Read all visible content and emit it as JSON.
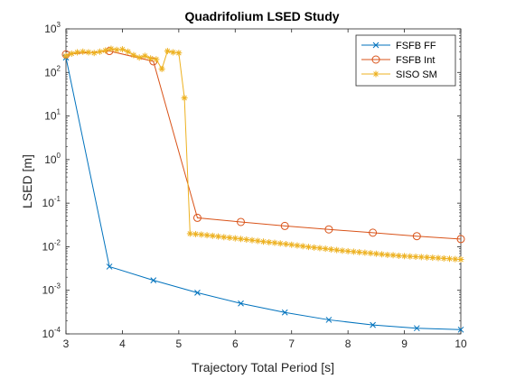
{
  "chart_data": {
    "type": "line",
    "title": "Quadrifolium LSED Study",
    "xlabel": "Trajectory Total Period [s]",
    "ylabel": "LSED [m]",
    "xlim": [
      3,
      10
    ],
    "ylim": [
      0.0001,
      1000
    ],
    "yscale": "log",
    "grid": false,
    "legend_position": "top-right",
    "x_ticks": [
      "3",
      "4",
      "5",
      "6",
      "7",
      "8",
      "9",
      "10"
    ],
    "y_tick_base": "10",
    "y_tick_exponents": [
      "-4",
      "-3",
      "-2",
      "-1",
      "0",
      "1",
      "2",
      "3"
    ],
    "series": [
      {
        "name": "FSFB FF",
        "color": "#0072BD",
        "marker": "x",
        "x": [
          3.0,
          3.77,
          4.55,
          5.33,
          6.1,
          6.88,
          7.66,
          8.44,
          9.22,
          10.0
        ],
        "y": [
          220,
          0.0035,
          0.0017,
          0.00088,
          0.0005,
          0.00031,
          0.00021,
          0.00016,
          0.000135,
          0.000125
        ]
      },
      {
        "name": "FSFB Int",
        "color": "#D95319",
        "marker": "o",
        "x": [
          3.0,
          3.77,
          4.55,
          5.33,
          6.1,
          6.88,
          7.66,
          8.44,
          9.22,
          10.0
        ],
        "y": [
          260,
          310,
          180,
          0.046,
          0.037,
          0.03,
          0.025,
          0.021,
          0.0175,
          0.015
        ]
      },
      {
        "name": "SISO SM",
        "color": "#EDB120",
        "marker": "*",
        "x": [
          3.0,
          3.1,
          3.2,
          3.3,
          3.4,
          3.5,
          3.6,
          3.7,
          3.8,
          3.9,
          4.0,
          4.1,
          4.2,
          4.3,
          4.4,
          4.5,
          4.6,
          4.7,
          4.8,
          4.9,
          5.0,
          5.1,
          5.2,
          5.3,
          5.4,
          5.5,
          5.6,
          5.7,
          5.8,
          5.9,
          6.0,
          6.1,
          6.2,
          6.3,
          6.4,
          6.5,
          6.6,
          6.7,
          6.8,
          6.9,
          7.0,
          7.1,
          7.2,
          7.3,
          7.4,
          7.5,
          7.6,
          7.7,
          7.8,
          7.9,
          8.0,
          8.1,
          8.2,
          8.3,
          8.4,
          8.5,
          8.6,
          8.7,
          8.8,
          8.9,
          9.0,
          9.1,
          9.2,
          9.3,
          9.4,
          9.5,
          9.6,
          9.7,
          9.8,
          9.9,
          10.0
        ],
        "y": [
          240,
          270,
          290,
          300,
          290,
          280,
          300,
          320,
          350,
          330,
          340,
          300,
          250,
          220,
          240,
          210,
          200,
          120,
          310,
          290,
          280,
          26,
          0.02,
          0.0195,
          0.019,
          0.0184,
          0.0178,
          0.0172,
          0.0166,
          0.0161,
          0.0156,
          0.0151,
          0.0146,
          0.0141,
          0.0136,
          0.0131,
          0.0127,
          0.0123,
          0.0119,
          0.0115,
          0.0111,
          0.0107,
          0.0103,
          0.0099,
          0.0096,
          0.0093,
          0.009,
          0.0087,
          0.0084,
          0.0081,
          0.0079,
          0.0077,
          0.0075,
          0.0073,
          0.0071,
          0.0069,
          0.0067,
          0.0065,
          0.0064,
          0.0062,
          0.0061,
          0.006,
          0.0059,
          0.0058,
          0.0057,
          0.0056,
          0.0055,
          0.0054,
          0.0053,
          0.0052,
          0.0051
        ]
      }
    ]
  }
}
